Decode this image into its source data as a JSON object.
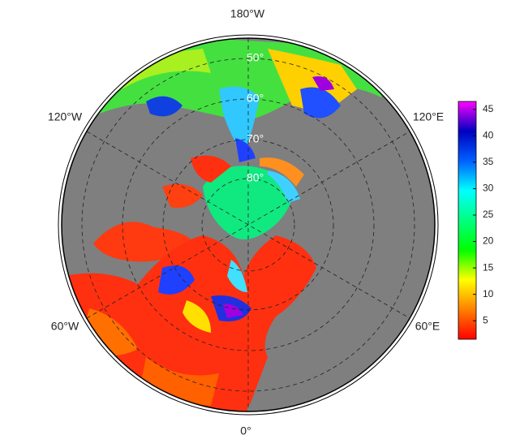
{
  "map": {
    "lon_labels": {
      "top": "180°W",
      "upper_left": "120°W",
      "upper_right": "120°E",
      "lower_left": "60°W",
      "lower_right": "60°E",
      "bottom": "0°"
    },
    "lat_labels": [
      "50°",
      "60°",
      "70°",
      "80°"
    ],
    "colorbar": {
      "lim": [
        1.5,
        46.5
      ],
      "ticks": [
        5,
        10,
        15,
        20,
        25,
        30,
        35,
        40,
        45
      ],
      "colors": [
        "#ff0000",
        "#ff8000",
        "#ffff00",
        "#00ff00",
        "#00ff80",
        "#00ffff",
        "#0060ff",
        "#0000c0",
        "#ff00ff"
      ]
    }
  }
}
